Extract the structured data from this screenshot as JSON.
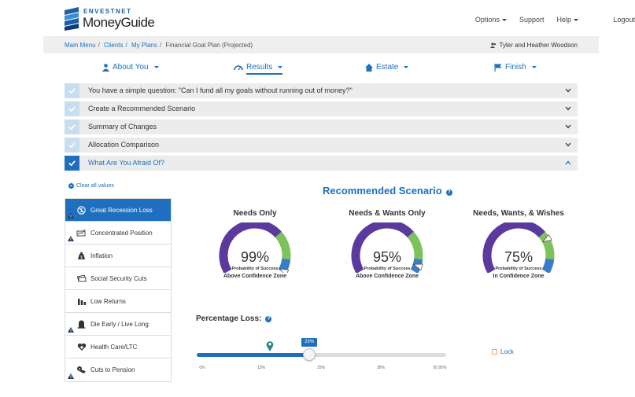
{
  "brand": {
    "company": "ENVESTNET",
    "product": "MoneyGuide"
  },
  "topnav": {
    "options": "Options",
    "support": "Support",
    "help": "Help",
    "logout": "Logout"
  },
  "breadcrumb": {
    "main_menu": "Main Menu",
    "clients": "Clients",
    "my_plans": "My Plans",
    "current": "Financial Goal Plan (Projected)",
    "client_name": "Tyler and Heather Woodson"
  },
  "sections": [
    {
      "label": "About You",
      "icon": "person-icon"
    },
    {
      "label": "Results",
      "icon": "gauge-icon"
    },
    {
      "label": "Estate",
      "icon": "home-icon"
    },
    {
      "label": "Finish",
      "icon": "flag-icon"
    }
  ],
  "accordion": [
    {
      "label": "You have a simple question: \"Can I fund all my goals without running out of money?\"",
      "open": false
    },
    {
      "label": "Create a Recommended Scenario",
      "open": false
    },
    {
      "label": "Summary of Changes",
      "open": false
    },
    {
      "label": "Allocation Comparison",
      "open": false
    },
    {
      "label": "What Are You Afraid Of?",
      "open": true
    }
  ],
  "clear_all": "Clear all values",
  "scenarios": [
    {
      "label": "Great Recession Loss",
      "icon": "recession-icon",
      "active": true,
      "warning": true
    },
    {
      "label": "Concentrated Position",
      "icon": "stocks-icon",
      "active": false,
      "warning": true
    },
    {
      "label": "Inflation",
      "icon": "money-bag-icon",
      "active": false,
      "warning": false
    },
    {
      "label": "Social Security Cuts",
      "icon": "cash-icon",
      "active": false,
      "warning": false
    },
    {
      "label": "Low Returns",
      "icon": "bar-chart-icon",
      "active": false,
      "warning": false
    },
    {
      "label": "Die Early / Live Long",
      "icon": "tombstone-icon",
      "active": false,
      "warning": true
    },
    {
      "label": "Health Care/LTC",
      "icon": "heart-icon",
      "active": false,
      "warning": false
    },
    {
      "label": "Cuts to Pension",
      "icon": "pension-icon",
      "active": false,
      "warning": true
    }
  ],
  "recommended": {
    "title": "Recommended Scenario",
    "gauges": [
      {
        "title": "Needs Only",
        "value": 99,
        "value_text": "99%",
        "caption": "Probability of Success",
        "zone": "Above Confidence Zone"
      },
      {
        "title": "Needs & Wants Only",
        "value": 95,
        "value_text": "95%",
        "caption": "Probability of Success",
        "zone": "Above Confidence Zone"
      },
      {
        "title": "Needs, Wants, & Wishes",
        "value": 75,
        "value_text": "75%",
        "caption": "Probability of Success",
        "zone": "In Confidence Zone"
      }
    ]
  },
  "percentage_loss": {
    "title": "Percentage Loss:",
    "value": 23,
    "value_text": "23%",
    "min": 0,
    "max": 50.95,
    "marker_value": 15,
    "ticks": [
      "0%",
      "13%",
      "25%",
      "38%",
      "50.95%"
    ],
    "lock_label": "Lock"
  },
  "colors": {
    "accent": "#1e6fbf",
    "gauge_purple": "#5b3a9e",
    "gauge_green": "#7dc25a",
    "gauge_blue": "#3a7cc9",
    "pin_teal": "#1f8a87"
  }
}
